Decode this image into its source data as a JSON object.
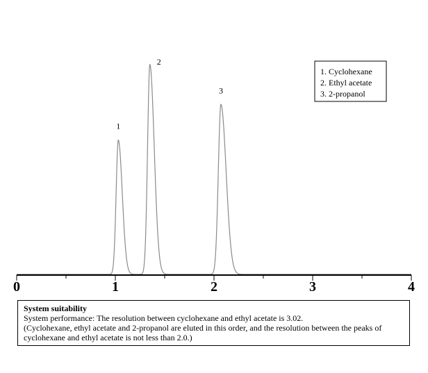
{
  "chart_data": {
    "type": "line",
    "xlim": [
      0,
      4
    ],
    "x_ticks": [
      "0",
      "1",
      "2",
      "3",
      "4"
    ],
    "grid": false,
    "legend_position": "top-right",
    "legend": [
      "1. Cyclohexane",
      "2. Ethyl acetate",
      "3. 2-propanol"
    ],
    "peaks": [
      {
        "label": "1",
        "name": "Cyclohexane",
        "retention_time": 1.03,
        "height": 0.64
      },
      {
        "label": "2",
        "name": "Ethyl acetate",
        "retention_time": 1.35,
        "height": 1.0
      },
      {
        "label": "3",
        "name": "2-propanol",
        "retention_time": 2.07,
        "height": 0.81
      }
    ],
    "line_color": "#8a8a8a"
  },
  "note": {
    "title": "System suitability",
    "line1": "System performance: The resolution between cyclohexane and ethyl acetate is 3.02.",
    "line2": "(Cyclohexane, ethyl acetate and 2-propanol are eluted in this order, and the resolution between the peaks of",
    "line3": "cyclohexane and ethyl acetate is not less than 2.0.)"
  }
}
